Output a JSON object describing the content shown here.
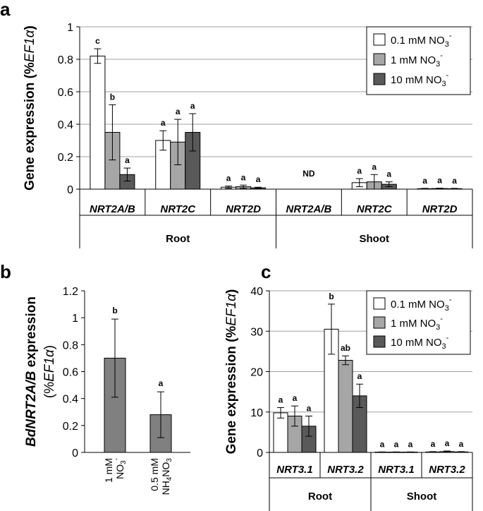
{
  "chart_data": [
    {
      "panel": "a",
      "type": "bar",
      "ylabel_prefix": "Gene expression (%",
      "ylabel_ital": "EF1α",
      "ylabel_suffix": ")",
      "ylim": [
        0,
        1
      ],
      "yticks": [
        0,
        0.2,
        0.4,
        0.6,
        0.8,
        1
      ],
      "grid": true,
      "legend": [
        {
          "name": "0.1 mM NO",
          "sub": "3",
          "sup": "-",
          "color": "#ffffff"
        },
        {
          "name": "1 mM NO",
          "sub": "3",
          "sup": "-",
          "color": "#a6a6a6"
        },
        {
          "name": "10 mM NO",
          "sub": "3",
          "sup": "-",
          "color": "#595959"
        }
      ],
      "groups": [
        {
          "label": "Root",
          "categories": [
            {
              "label": "NRT2A/B",
              "values": [
                0.82,
                0.35,
                0.09
              ],
              "errors": [
                0.045,
                0.17,
                0.04
              ],
              "sig": [
                "c",
                "b",
                "a"
              ]
            },
            {
              "label": "NRT2C",
              "values": [
                0.3,
                0.29,
                0.35
              ],
              "errors": [
                0.06,
                0.14,
                0.115
              ],
              "sig": [
                "a",
                "a",
                "a"
              ]
            },
            {
              "label": "NRT2D",
              "values": [
                0.012,
                0.015,
                0.008
              ],
              "errors": [
                0.007,
                0.01,
                0.004
              ],
              "sig": [
                "a",
                "a",
                "a"
              ]
            }
          ]
        },
        {
          "label": "Shoot",
          "categories": [
            {
              "label": "NRT2A/B",
              "values": null,
              "errors": null,
              "sig": [],
              "note": "ND"
            },
            {
              "label": "NRT2C",
              "values": [
                0.04,
                0.045,
                0.03
              ],
              "errors": [
                0.025,
                0.045,
                0.015
              ],
              "sig": [
                "a",
                "a",
                "a"
              ]
            },
            {
              "label": "NRT2D",
              "values": [
                0.003,
                0.004,
                0.003
              ],
              "errors": [
                0.002,
                0.002,
                0.002
              ],
              "sig": [
                "a",
                "a",
                "a"
              ]
            }
          ]
        }
      ]
    },
    {
      "panel": "b",
      "type": "bar",
      "ylabel_line1_ital": "BdNRT2A/B",
      "ylabel_line1_rest": " expression",
      "ylabel_line2_prefix": "(%",
      "ylabel_line2_ital": "EF1α",
      "ylabel_line2_suffix": ")",
      "ylim": [
        0,
        1.2
      ],
      "yticks": [
        0,
        0.2,
        0.4,
        0.6,
        0.8,
        1,
        1.2
      ],
      "yticklabels": [
        "0",
        "0.2",
        "0.4",
        "0.6",
        "0.8",
        "1",
        "1.2"
      ],
      "grid": false,
      "color": "#808080",
      "bars": [
        {
          "label_line1": "1 mM",
          "label_line2": "NO",
          "sub": "3",
          "sup": "-",
          "value": 0.7,
          "error": 0.29,
          "sig": "b"
        },
        {
          "label_line1": "0.5 mM",
          "label_line2": "NH",
          "sub": "4",
          "mid": "NO",
          "sub2": "3",
          "value": 0.28,
          "error": 0.17,
          "sig": "a"
        }
      ]
    },
    {
      "panel": "c",
      "type": "bar",
      "ylabel_prefix": "Gene expression (%",
      "ylabel_ital": "EF1α",
      "ylabel_suffix": ")",
      "ylim": [
        0,
        40
      ],
      "yticks": [
        0,
        10,
        20,
        30,
        40
      ],
      "grid": true,
      "legend": [
        {
          "name": "0.1 mM NO",
          "sub": "3",
          "sup": "-",
          "color": "#ffffff"
        },
        {
          "name": "1 mM NO",
          "sub": "3",
          "sup": "-",
          "color": "#a6a6a6"
        },
        {
          "name": "10 mM NO",
          "sub": "3",
          "sup": "-",
          "color": "#595959"
        }
      ],
      "groups": [
        {
          "label": "Root",
          "categories": [
            {
              "label": "NRT3.1",
              "values": [
                9.8,
                9.0,
                6.5
              ],
              "errors": [
                1.3,
                2.5,
                2.5
              ],
              "sig": [
                "a",
                "a",
                "a"
              ]
            },
            {
              "label": "NRT3.2",
              "values": [
                30.5,
                22.8,
                14.0
              ],
              "errors": [
                6.2,
                1.1,
                2.9
              ],
              "sig": [
                "b",
                "ab",
                "a"
              ]
            }
          ]
        },
        {
          "label": "Shoot",
          "categories": [
            {
              "label": "NRT3.1",
              "values": [
                0.08,
                0.08,
                0.08
              ],
              "errors": [
                0.05,
                0.05,
                0.05
              ],
              "sig": [
                "a",
                "a",
                "a"
              ]
            },
            {
              "label": "NRT3.2",
              "values": [
                0.12,
                0.2,
                0.12
              ],
              "errors": [
                0.08,
                0.15,
                0.08
              ],
              "sig": [
                "a",
                "a",
                "a"
              ]
            }
          ]
        }
      ]
    }
  ]
}
